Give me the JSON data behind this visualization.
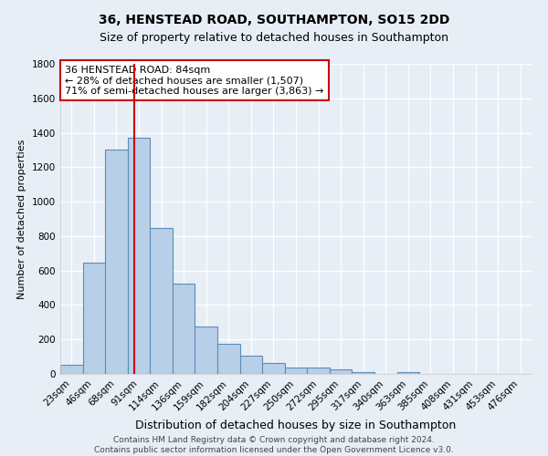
{
  "title": "36, HENSTEAD ROAD, SOUTHAMPTON, SO15 2DD",
  "subtitle": "Size of property relative to detached houses in Southampton",
  "xlabel": "Distribution of detached houses by size in Southampton",
  "ylabel": "Number of detached properties",
  "bar_color": "#b8cfe8",
  "bar_edge_color": "#5b8db8",
  "bg_color": "#e8eef6",
  "grid_color": "#ffffff",
  "categories": [
    "23sqm",
    "46sqm",
    "68sqm",
    "91sqm",
    "114sqm",
    "136sqm",
    "159sqm",
    "182sqm",
    "204sqm",
    "227sqm",
    "250sqm",
    "272sqm",
    "295sqm",
    "317sqm",
    "340sqm",
    "363sqm",
    "385sqm",
    "408sqm",
    "431sqm",
    "453sqm",
    "476sqm"
  ],
  "values": [
    55,
    645,
    1300,
    1370,
    845,
    525,
    275,
    175,
    105,
    65,
    35,
    35,
    25,
    13,
    2,
    12,
    1,
    0,
    0,
    0,
    0
  ],
  "vline_x": 2.78,
  "vline_color": "#cc0000",
  "annotation_line1": "36 HENSTEAD ROAD: 84sqm",
  "annotation_line2": "← 28% of detached houses are smaller (1,507)",
  "annotation_line3": "71% of semi-detached houses are larger (3,863) →",
  "annotation_box_color": "#ffffff",
  "annotation_box_edge": "#cc0000",
  "ylim": [
    0,
    1800
  ],
  "yticks": [
    0,
    200,
    400,
    600,
    800,
    1000,
    1200,
    1400,
    1600,
    1800
  ],
  "footer": "Contains HM Land Registry data © Crown copyright and database right 2024.\nContains public sector information licensed under the Open Government Licence v3.0.",
  "title_fontsize": 10,
  "subtitle_fontsize": 9,
  "xlabel_fontsize": 9,
  "ylabel_fontsize": 8,
  "tick_fontsize": 7.5,
  "annot_fontsize": 8,
  "footer_fontsize": 6.5
}
